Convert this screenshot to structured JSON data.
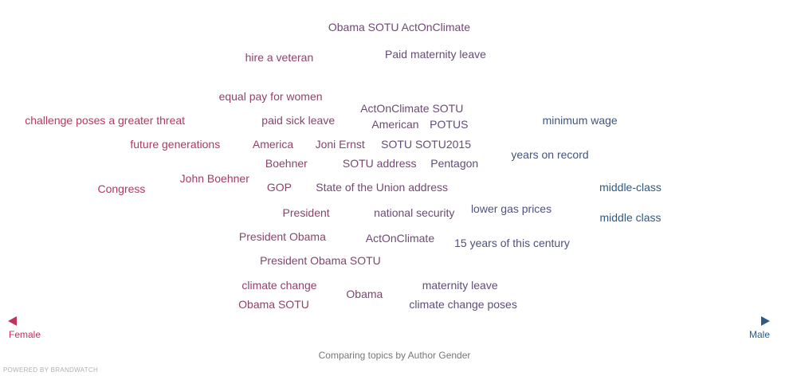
{
  "chart_data": {
    "type": "scatter",
    "title": "",
    "caption": "Comparing topics by Author Gender",
    "xlabel_left": "Female",
    "xlabel_right": "Male",
    "footer": "POWERED BY BRANDWATCH",
    "colors": {
      "female": "#c0355d",
      "male": "#2f5a85"
    },
    "topics": [
      {
        "text": "Obama SOTU ActOnClimate",
        "x": 0.506,
        "y": 10
      },
      {
        "text": "hire a veteran",
        "x": 0.354,
        "y": 9
      },
      {
        "text": "Paid maternity leave",
        "x": 0.552,
        "y": 9.1
      },
      {
        "text": "equal pay for women",
        "x": 0.343,
        "y": 7.7
      },
      {
        "text": "ActOnClimate SOTU",
        "x": 0.522,
        "y": 7.3
      },
      {
        "text": "challenge poses a greater threat",
        "x": 0.133,
        "y": 6.9
      },
      {
        "text": "paid sick leave",
        "x": 0.378,
        "y": 6.9
      },
      {
        "text": "American",
        "x": 0.501,
        "y": 6.75
      },
      {
        "text": "POTUS",
        "x": 0.569,
        "y": 6.75
      },
      {
        "text": "minimum wage",
        "x": 0.735,
        "y": 6.9
      },
      {
        "text": "future generations",
        "x": 0.222,
        "y": 6.1
      },
      {
        "text": "America",
        "x": 0.346,
        "y": 6.1
      },
      {
        "text": "Joni Ernst",
        "x": 0.431,
        "y": 6.1
      },
      {
        "text": "SOTU SOTU2015",
        "x": 0.54,
        "y": 6.1
      },
      {
        "text": "years on record",
        "x": 0.697,
        "y": 5.75
      },
      {
        "text": "Boehner",
        "x": 0.363,
        "y": 5.45
      },
      {
        "text": "SOTU address",
        "x": 0.481,
        "y": 5.45
      },
      {
        "text": "Pentagon",
        "x": 0.576,
        "y": 5.45
      },
      {
        "text": "John Boehner",
        "x": 0.272,
        "y": 4.95
      },
      {
        "text": "Congress",
        "x": 0.154,
        "y": 4.6
      },
      {
        "text": "GOP",
        "x": 0.354,
        "y": 4.65
      },
      {
        "text": "State of the Union address",
        "x": 0.484,
        "y": 4.65
      },
      {
        "text": "middle-class",
        "x": 0.799,
        "y": 4.65
      },
      {
        "text": "President",
        "x": 0.388,
        "y": 3.8
      },
      {
        "text": "national security",
        "x": 0.525,
        "y": 3.8
      },
      {
        "text": "lower gas prices",
        "x": 0.648,
        "y": 3.95
      },
      {
        "text": "middle class",
        "x": 0.799,
        "y": 3.65
      },
      {
        "text": "President Obama",
        "x": 0.358,
        "y": 3.0
      },
      {
        "text": "ActOnClimate",
        "x": 0.507,
        "y": 2.95
      },
      {
        "text": "15 years of this century",
        "x": 0.649,
        "y": 2.8
      },
      {
        "text": "President Obama SOTU",
        "x": 0.406,
        "y": 2.2
      },
      {
        "text": "climate change",
        "x": 0.354,
        "y": 1.4
      },
      {
        "text": "Obama",
        "x": 0.462,
        "y": 1.1
      },
      {
        "text": "maternity leave",
        "x": 0.583,
        "y": 1.4
      },
      {
        "text": "Obama SOTU",
        "x": 0.347,
        "y": 0.75
      },
      {
        "text": "climate change poses",
        "x": 0.587,
        "y": 0.75
      }
    ]
  }
}
